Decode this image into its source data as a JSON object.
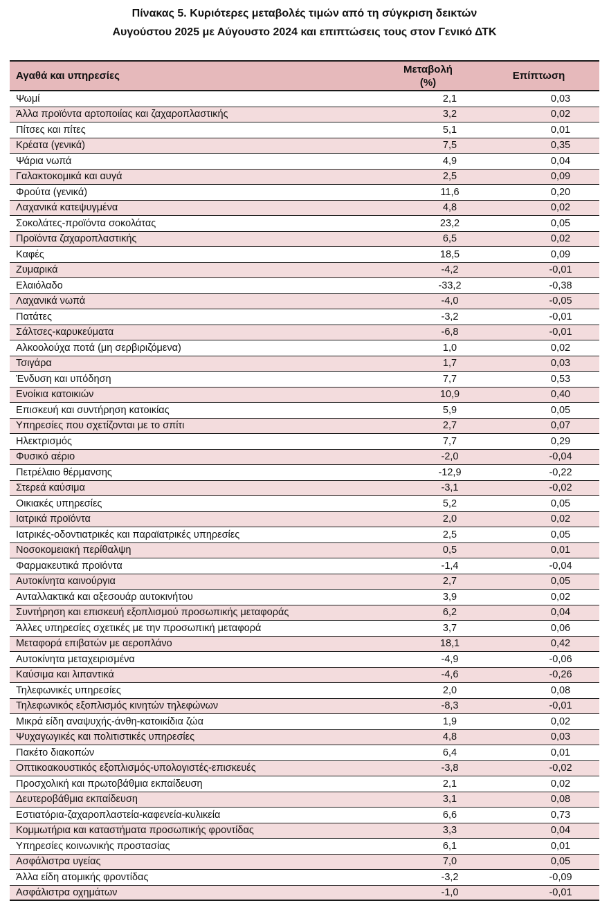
{
  "title": {
    "line1": "Πίνακας  5. Κυριότερες μεταβολές τιμών από τη σύγκριση δεικτών",
    "line2": "Αυγούστου 2025 με Αύγουστο 2024 και επιπτώσεις τους στον Γενικό ΔΤΚ"
  },
  "table": {
    "headers": {
      "item": "Αγαθά και υπηρεσίες",
      "change_line1": "Μεταβολή",
      "change_line2": "(%)",
      "impact": "Επίπτωση"
    },
    "rows": [
      {
        "item": "Ψωμί",
        "change": "2,1",
        "impact": "0,03"
      },
      {
        "item": "Άλλα προϊόντα αρτοποιίας και ζαχαροπλαστικής",
        "change": "3,2",
        "impact": "0,02"
      },
      {
        "item": "Πίτσες και πίτες",
        "change": "5,1",
        "impact": "0,01"
      },
      {
        "item": "Κρέατα (γενικά)",
        "change": "7,5",
        "impact": "0,35"
      },
      {
        "item": "Ψάρια νωπά",
        "change": "4,9",
        "impact": "0,04"
      },
      {
        "item": "Γαλακτοκομικά και αυγά",
        "change": "2,5",
        "impact": "0,09"
      },
      {
        "item": "Φρούτα (γενικά)",
        "change": "11,6",
        "impact": "0,20"
      },
      {
        "item": "Λαχανικά κατεψυγμένα",
        "change": "4,8",
        "impact": "0,02"
      },
      {
        "item": "Σοκολάτες-προϊόντα σοκολάτας",
        "change": "23,2",
        "impact": "0,05"
      },
      {
        "item": "Προϊόντα ζαχαροπλαστικής",
        "change": "6,5",
        "impact": "0,02"
      },
      {
        "item": "Καφές",
        "change": "18,5",
        "impact": "0,09"
      },
      {
        "item": "Ζυμαρικά",
        "change": "-4,2",
        "impact": "-0,01"
      },
      {
        "item": "Ελαιόλαδο",
        "change": "-33,2",
        "impact": "-0,38"
      },
      {
        "item": "Λαχανικά νωπά",
        "change": "-4,0",
        "impact": "-0,05"
      },
      {
        "item": "Πατάτες",
        "change": "-3,2",
        "impact": "-0,01"
      },
      {
        "item": "Σάλτσες-καρυκεύματα",
        "change": "-6,8",
        "impact": "-0,01"
      },
      {
        "item": "Αλκοολούχα ποτά (μη σερβιριζόμενα)",
        "change": "1,0",
        "impact": "0,02"
      },
      {
        "item": "Τσιγάρα",
        "change": "1,7",
        "impact": "0,03"
      },
      {
        "item": "Ένδυση και υπόδηση",
        "change": "7,7",
        "impact": "0,53"
      },
      {
        "item": "Ενοίκια κατοικιών",
        "change": "10,9",
        "impact": "0,40"
      },
      {
        "item": "Επισκευή και συντήρηση κατοικίας",
        "change": "5,9",
        "impact": "0,05"
      },
      {
        "item": "Υπηρεσίες που σχετίζονται με το σπίτι",
        "change": "2,7",
        "impact": "0,07"
      },
      {
        "item": "Ηλεκτρισμός",
        "change": "7,7",
        "impact": "0,29"
      },
      {
        "item": "Φυσικό αέριο",
        "change": "-2,0",
        "impact": "-0,04"
      },
      {
        "item": "Πετρέλαιο θέρμανσης",
        "change": "-12,9",
        "impact": "-0,22"
      },
      {
        "item": "Στερεά καύσιμα",
        "change": "-3,1",
        "impact": "-0,02"
      },
      {
        "item": "Οικιακές υπηρεσίες",
        "change": "5,2",
        "impact": "0,05"
      },
      {
        "item": "Ιατρικά προϊόντα",
        "change": "2,0",
        "impact": "0,02"
      },
      {
        "item": "Ιατρικές-οδοντιατρικές και παραϊατρικές υπηρεσίες",
        "change": "2,5",
        "impact": "0,05"
      },
      {
        "item": "Νοσοκομειακή περίθαλψη",
        "change": "0,5",
        "impact": "0,01"
      },
      {
        "item": "Φαρμακευτικά προϊόντα",
        "change": "-1,4",
        "impact": "-0,04"
      },
      {
        "item": "Αυτοκίνητα καινούργια",
        "change": "2,7",
        "impact": "0,05"
      },
      {
        "item": "Ανταλλακτικά και αξεσουάρ αυτοκινήτου",
        "change": "3,9",
        "impact": "0,02"
      },
      {
        "item": "Συντήρηση και επισκευή εξοπλισμού προσωπικής μεταφοράς",
        "change": "6,2",
        "impact": "0,04"
      },
      {
        "item": "Άλλες υπηρεσίες σχετικές με την προσωπική μεταφορά",
        "change": "3,7",
        "impact": "0,06"
      },
      {
        "item": "Μεταφορά επιβατών με αεροπλάνο",
        "change": "18,1",
        "impact": "0,42"
      },
      {
        "item": "Αυτοκίνητα μεταχειρισμένα",
        "change": "-4,9",
        "impact": "-0,06"
      },
      {
        "item": "Καύσιμα και λιπαντικά",
        "change": "-4,6",
        "impact": "-0,26"
      },
      {
        "item": "Τηλεφωνικές υπηρεσίες",
        "change": "2,0",
        "impact": "0,08"
      },
      {
        "item": "Τηλεφωνικός εξοπλισμός κινητών τηλεφώνων",
        "change": "-8,3",
        "impact": "-0,01"
      },
      {
        "item": "Μικρά είδη αναψυχής-άνθη-κατοικίδια ζώα",
        "change": "1,9",
        "impact": "0,02"
      },
      {
        "item": "Ψυχαγωγικές και πολιτιστικές υπηρεσίες",
        "change": "4,8",
        "impact": "0,03"
      },
      {
        "item": "Πακέτο διακοπών",
        "change": "6,4",
        "impact": "0,01"
      },
      {
        "item": "Οπτικοακουστικός εξοπλισμός-υπολογιστές-επισκευές",
        "change": "-3,8",
        "impact": "-0,02"
      },
      {
        "item": "Προσχολική και πρωτοβάθμια εκπαίδευση",
        "change": "2,1",
        "impact": "0,02"
      },
      {
        "item": "Δευτεροβάθμια εκπαίδευση",
        "change": "3,1",
        "impact": "0,08"
      },
      {
        "item": "Εστιατόρια-ζαχαροπλαστεία-καφενεία-κυλικεία",
        "change": "6,6",
        "impact": "0,73"
      },
      {
        "item": "Κομμωτήρια και καταστήματα προσωπικής φροντίδας",
        "change": "3,3",
        "impact": "0,04"
      },
      {
        "item": "Υπηρεσίες κοινωνικής προστασίας",
        "change": "6,1",
        "impact": "0,01"
      },
      {
        "item": "Ασφάλιστρα υγείας",
        "change": "7,0",
        "impact": "0,05"
      },
      {
        "item": "Άλλα είδη ατομικής φροντίδας",
        "change": "-3,2",
        "impact": "-0,09"
      },
      {
        "item": "Ασφάλιστρα οχημάτων",
        "change": "-1,0",
        "impact": "-0,01"
      }
    ]
  },
  "colors": {
    "header_bg": "#e6b9bb",
    "alt_row_bg": "#f3dcdd",
    "rule": "#1a1a1a"
  }
}
